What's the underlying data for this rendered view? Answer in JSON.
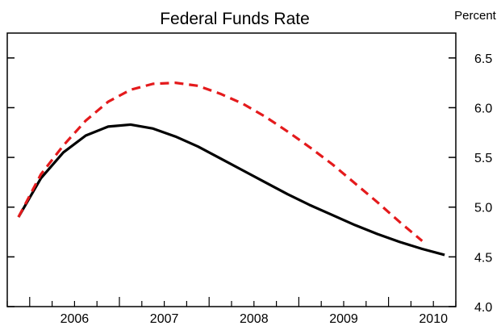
{
  "chart_data": {
    "type": "line",
    "title": "Federal Funds Rate",
    "ylabel": "Percent",
    "xlabel": "",
    "x_ticks": [
      "2006",
      "2007",
      "2008",
      "2009",
      "2010"
    ],
    "y_ticks": [
      "4.0",
      "4.5",
      "5.0",
      "5.5",
      "6.0",
      "6.5"
    ],
    "ylim": [
      4.0,
      6.75
    ],
    "xlim": [
      2005.75,
      2010.75
    ],
    "grid": false,
    "series": [
      {
        "color": "#000000",
        "dash": "solid",
        "points": [
          [
            2005.875,
            4.9
          ],
          [
            2006.125,
            5.29
          ],
          [
            2006.375,
            5.55
          ],
          [
            2006.625,
            5.72
          ],
          [
            2006.875,
            5.81
          ],
          [
            2007.125,
            5.83
          ],
          [
            2007.375,
            5.79
          ],
          [
            2007.625,
            5.71
          ],
          [
            2007.875,
            5.61
          ],
          [
            2008.125,
            5.49
          ],
          [
            2008.375,
            5.37
          ],
          [
            2008.625,
            5.25
          ],
          [
            2008.875,
            5.13
          ],
          [
            2009.125,
            5.02
          ],
          [
            2009.375,
            4.92
          ],
          [
            2009.625,
            4.82
          ],
          [
            2009.875,
            4.73
          ],
          [
            2010.125,
            4.65
          ],
          [
            2010.375,
            4.58
          ],
          [
            2010.625,
            4.52
          ]
        ]
      },
      {
        "color": "#e41a1c",
        "dash": "dashed",
        "points": [
          [
            2005.875,
            4.9
          ],
          [
            2006.125,
            5.33
          ],
          [
            2006.375,
            5.62
          ],
          [
            2006.625,
            5.87
          ],
          [
            2006.875,
            6.06
          ],
          [
            2007.125,
            6.18
          ],
          [
            2007.375,
            6.24
          ],
          [
            2007.625,
            6.25
          ],
          [
            2007.875,
            6.22
          ],
          [
            2008.125,
            6.14
          ],
          [
            2008.375,
            6.04
          ],
          [
            2008.625,
            5.91
          ],
          [
            2008.875,
            5.76
          ],
          [
            2009.125,
            5.6
          ],
          [
            2009.375,
            5.43
          ],
          [
            2009.625,
            5.24
          ],
          [
            2009.875,
            5.05
          ],
          [
            2010.125,
            4.85
          ],
          [
            2010.375,
            4.66
          ]
        ]
      }
    ]
  }
}
